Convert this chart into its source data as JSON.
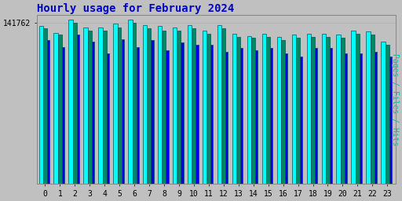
{
  "title": "Hourly usage for February 2024",
  "title_color": "#0000cc",
  "ylabel_right": "Pages / Files / Hits",
  "background_color": "#c0c0c0",
  "plot_background": "#c0c0c0",
  "hours": [
    0,
    1,
    2,
    3,
    4,
    5,
    6,
    7,
    8,
    9,
    10,
    11,
    12,
    13,
    14,
    15,
    16,
    17,
    18,
    19,
    20,
    21,
    22,
    23
  ],
  "pages": [
    145000,
    139000,
    151000,
    144000,
    144000,
    147000,
    151000,
    146000,
    145000,
    144000,
    146000,
    141000,
    146000,
    138000,
    136000,
    138000,
    135000,
    137000,
    138000,
    138000,
    137000,
    141000,
    140000,
    131000
  ],
  "files": [
    132000,
    126000,
    137000,
    131000,
    120000,
    133000,
    126000,
    132000,
    123000,
    130000,
    128000,
    128000,
    121000,
    125000,
    123000,
    125000,
    120000,
    117000,
    125000,
    125000,
    120000,
    120000,
    121000,
    117000
  ],
  "hits": [
    143000,
    137000,
    148000,
    141000,
    141000,
    144000,
    148000,
    143000,
    141000,
    141000,
    143000,
    138000,
    143000,
    135000,
    134000,
    135000,
    132000,
    134000,
    135000,
    135000,
    134000,
    138000,
    137000,
    128000
  ],
  "pages_color": "#00ffff",
  "files_color": "#0000ee",
  "hits_color": "#008866",
  "bar_edge_color": "#005555",
  "ytick_value": "141762",
  "ylim_min": 0,
  "ylim_max": 155000,
  "ytick_pos": 148000
}
